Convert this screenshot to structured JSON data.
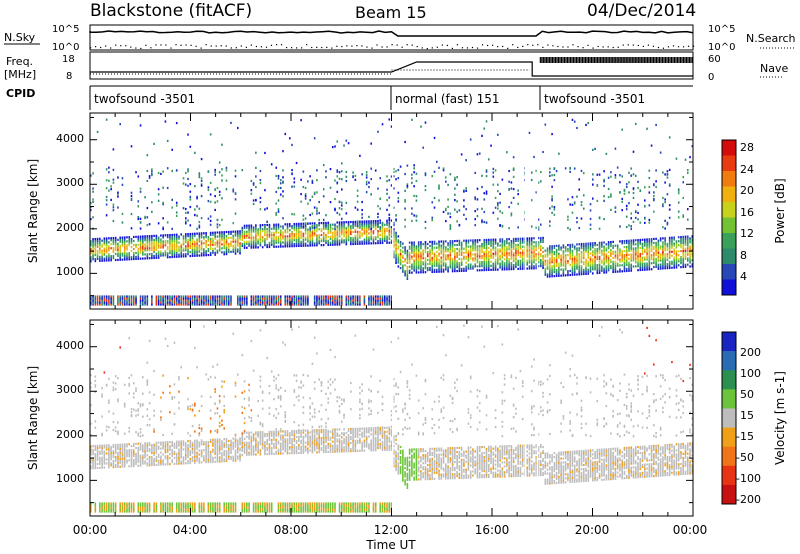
{
  "header": {
    "site": "Blackstone (fitACF)",
    "beam": "Beam 15",
    "date": "04/Dec/2014"
  },
  "summary_panels": {
    "nsky_label": "N.Sky",
    "nsky_ticks": [
      "10^5",
      "10^0"
    ],
    "nsearch_label": "N.Search",
    "nsearch_ticks": [
      "10^5",
      "10^0"
    ],
    "freq_label_1": "Freq.",
    "freq_label_2": "[MHz]",
    "freq_ticks": [
      "18",
      "8"
    ],
    "nave_label": "Nave",
    "nave_ticks": [
      "60",
      "0"
    ],
    "cpid_label": "CPID",
    "cpid_segments": [
      {
        "label": "twofsound -3501",
        "start_hour": 0.0,
        "end_hour": 12.0
      },
      {
        "label": "normal (fast) 151",
        "start_hour": 12.0,
        "end_hour": 17.8
      },
      {
        "label": "twofsound -3501",
        "start_hour": 17.8,
        "end_hour": 24.0
      }
    ]
  },
  "xaxis": {
    "label": "Time UT",
    "ticks": [
      "00:00",
      "04:00",
      "08:00",
      "12:00",
      "16:00",
      "20:00",
      "00:00"
    ]
  },
  "chart_data": [
    {
      "type": "heatmap",
      "ylabel": "Slant Range [km]",
      "yticks": [
        "1000",
        "2000",
        "3000",
        "4000"
      ],
      "ylim": [
        200,
        4600
      ],
      "xlim_hours": [
        0,
        24
      ],
      "colorbar_label": "Power [dB]",
      "colorbar_ticks": [
        "4",
        "8",
        "12",
        "16",
        "20",
        "24",
        "28"
      ],
      "colorbar_range": [
        0,
        30
      ],
      "colors": [
        "#1010d8",
        "#2848b8",
        "#2d8a6a",
        "#3aa05a",
        "#72c234",
        "#c8d21c",
        "#f0b010",
        "#f07c10",
        "#e83c10",
        "#d40c0c"
      ]
    },
    {
      "type": "heatmap",
      "ylabel": "Slant Range [km]",
      "yticks": [
        "1000",
        "2000",
        "3000",
        "4000"
      ],
      "ylim": [
        200,
        4600
      ],
      "xlim_hours": [
        0,
        24
      ],
      "colorbar_label": "Velocity [m s-1]",
      "colorbar_ticks": [
        "200",
        "100",
        "50",
        "15",
        "-15",
        "-50",
        "-100",
        "-200"
      ],
      "colorbar_range": [
        -250,
        250
      ],
      "colors": [
        "#1a24c0",
        "#2a6cb4",
        "#2c9050",
        "#6cc43c",
        "#bdbdbd",
        "#f0a018",
        "#f07418",
        "#e83414",
        "#c81010"
      ]
    }
  ]
}
